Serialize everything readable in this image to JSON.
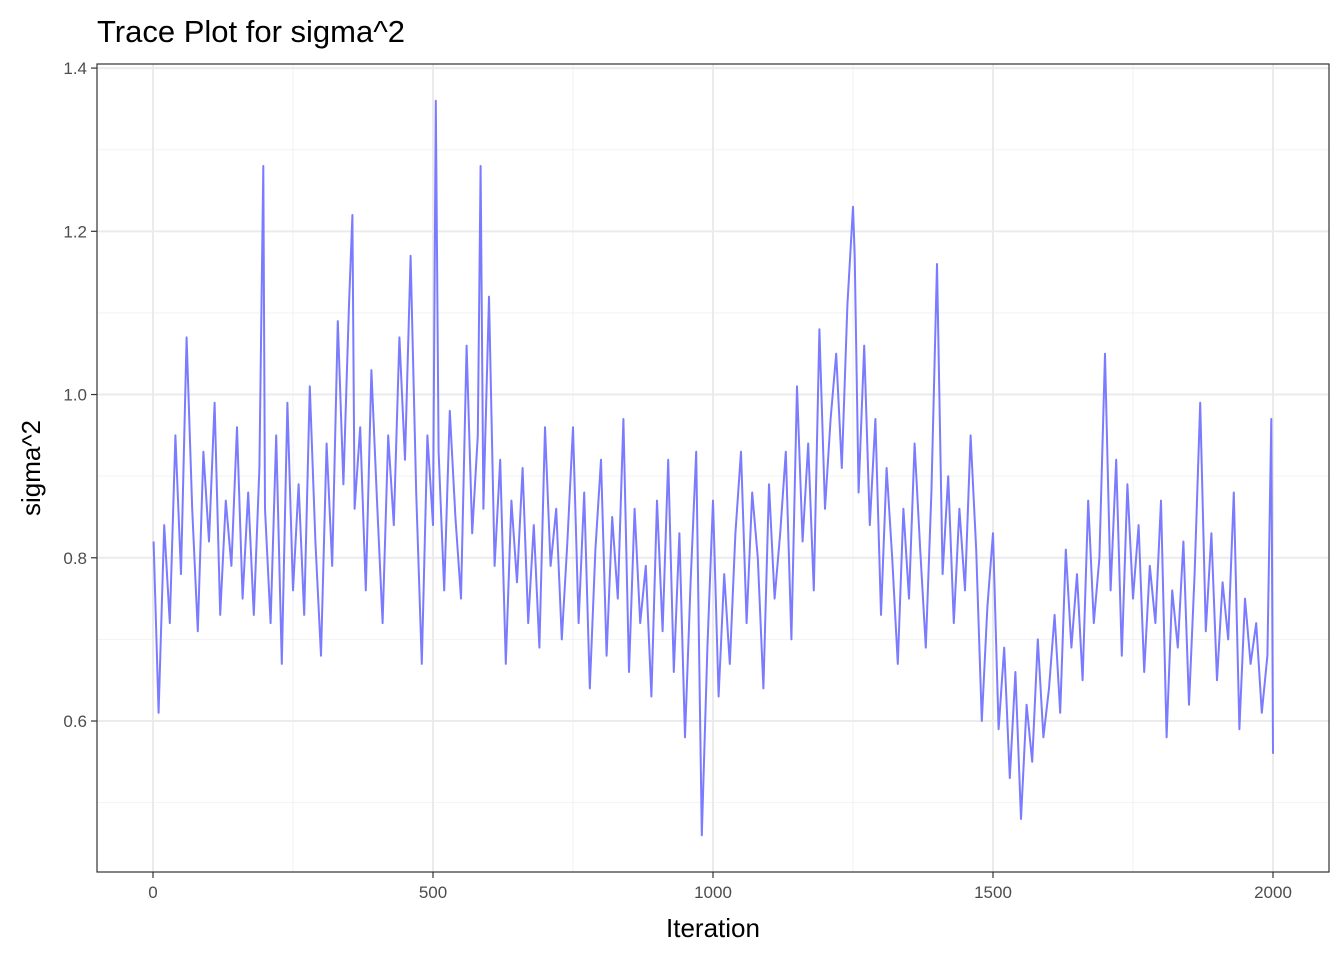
{
  "chart_data": {
    "type": "line",
    "title": "Trace Plot for sigma^2",
    "xlabel": "Iteration",
    "ylabel": "sigma^2",
    "xlim": [
      -100,
      2100
    ],
    "ylim": [
      0.415,
      1.405
    ],
    "x_ticks": [
      0,
      500,
      1000,
      1500,
      2000
    ],
    "x_tick_labels": [
      "0",
      "500",
      "1000",
      "1500",
      "2000"
    ],
    "y_ticks": [
      0.6,
      0.8,
      1.0,
      1.2,
      1.4
    ],
    "y_tick_labels": [
      "0.6",
      "0.8",
      "1.0",
      "1.2",
      "1.4"
    ],
    "grid": true,
    "series": [
      {
        "color": "#7b7bff",
        "x": [
          1,
          10,
          20,
          30,
          40,
          50,
          60,
          70,
          80,
          90,
          100,
          110,
          120,
          130,
          140,
          150,
          160,
          170,
          180,
          190,
          197,
          200,
          210,
          220,
          230,
          240,
          250,
          260,
          270,
          280,
          290,
          300,
          310,
          320,
          330,
          340,
          350,
          356,
          360,
          370,
          380,
          390,
          400,
          410,
          420,
          430,
          440,
          450,
          460,
          470,
          480,
          490,
          500,
          505,
          510,
          520,
          530,
          540,
          550,
          560,
          570,
          580,
          585,
          590,
          600,
          610,
          620,
          630,
          640,
          650,
          660,
          670,
          680,
          690,
          700,
          710,
          720,
          730,
          740,
          750,
          760,
          770,
          780,
          790,
          800,
          810,
          820,
          830,
          840,
          850,
          860,
          870,
          880,
          890,
          900,
          910,
          920,
          930,
          940,
          950,
          960,
          970,
          980,
          990,
          1000,
          1010,
          1020,
          1030,
          1040,
          1050,
          1060,
          1070,
          1080,
          1090,
          1100,
          1110,
          1120,
          1130,
          1140,
          1150,
          1160,
          1170,
          1180,
          1190,
          1200,
          1210,
          1220,
          1230,
          1240,
          1250,
          1253,
          1260,
          1270,
          1280,
          1290,
          1300,
          1310,
          1320,
          1330,
          1340,
          1350,
          1360,
          1370,
          1380,
          1390,
          1400,
          1410,
          1420,
          1430,
          1440,
          1450,
          1460,
          1470,
          1480,
          1490,
          1500,
          1510,
          1520,
          1530,
          1540,
          1550,
          1560,
          1570,
          1580,
          1590,
          1600,
          1610,
          1620,
          1630,
          1640,
          1650,
          1660,
          1670,
          1680,
          1690,
          1700,
          1710,
          1720,
          1730,
          1740,
          1750,
          1760,
          1770,
          1780,
          1790,
          1800,
          1810,
          1820,
          1830,
          1840,
          1850,
          1860,
          1870,
          1880,
          1890,
          1900,
          1910,
          1920,
          1930,
          1940,
          1950,
          1960,
          1970,
          1980,
          1990,
          1997,
          2000
        ],
        "y": [
          0.82,
          0.61,
          0.84,
          0.72,
          0.95,
          0.78,
          1.07,
          0.86,
          0.71,
          0.93,
          0.82,
          0.99,
          0.73,
          0.87,
          0.79,
          0.96,
          0.75,
          0.88,
          0.73,
          0.91,
          1.28,
          0.86,
          0.72,
          0.95,
          0.67,
          0.99,
          0.76,
          0.89,
          0.73,
          1.01,
          0.82,
          0.68,
          0.94,
          0.79,
          1.09,
          0.89,
          1.11,
          1.22,
          0.86,
          0.96,
          0.76,
          1.03,
          0.87,
          0.72,
          0.95,
          0.84,
          1.07,
          0.92,
          1.17,
          0.88,
          0.67,
          0.95,
          0.84,
          1.36,
          0.93,
          0.76,
          0.98,
          0.85,
          0.75,
          1.06,
          0.83,
          0.95,
          1.28,
          0.86,
          1.12,
          0.79,
          0.92,
          0.67,
          0.87,
          0.77,
          0.91,
          0.72,
          0.84,
          0.69,
          0.96,
          0.79,
          0.86,
          0.7,
          0.82,
          0.96,
          0.72,
          0.88,
          0.64,
          0.81,
          0.92,
          0.68,
          0.85,
          0.75,
          0.97,
          0.66,
          0.86,
          0.72,
          0.79,
          0.63,
          0.87,
          0.71,
          0.92,
          0.66,
          0.83,
          0.58,
          0.77,
          0.93,
          0.46,
          0.69,
          0.87,
          0.63,
          0.78,
          0.67,
          0.83,
          0.93,
          0.72,
          0.88,
          0.8,
          0.64,
          0.89,
          0.75,
          0.83,
          0.93,
          0.7,
          1.01,
          0.82,
          0.94,
          0.76,
          1.08,
          0.86,
          0.97,
          1.05,
          0.91,
          1.11,
          1.23,
          1.17,
          0.88,
          1.06,
          0.84,
          0.97,
          0.73,
          0.91,
          0.8,
          0.67,
          0.86,
          0.75,
          0.94,
          0.81,
          0.69,
          0.88,
          1.16,
          0.78,
          0.9,
          0.72,
          0.86,
          0.76,
          0.95,
          0.81,
          0.6,
          0.74,
          0.83,
          0.59,
          0.69,
          0.53,
          0.66,
          0.48,
          0.62,
          0.55,
          0.7,
          0.58,
          0.64,
          0.73,
          0.61,
          0.81,
          0.69,
          0.78,
          0.65,
          0.87,
          0.72,
          0.8,
          1.05,
          0.76,
          0.92,
          0.68,
          0.89,
          0.75,
          0.84,
          0.66,
          0.79,
          0.72,
          0.87,
          0.58,
          0.76,
          0.69,
          0.82,
          0.62,
          0.78,
          0.99,
          0.71,
          0.83,
          0.65,
          0.77,
          0.7,
          0.88,
          0.59,
          0.75,
          0.67,
          0.72,
          0.61,
          0.68,
          0.97,
          0.56
        ]
      }
    ]
  }
}
